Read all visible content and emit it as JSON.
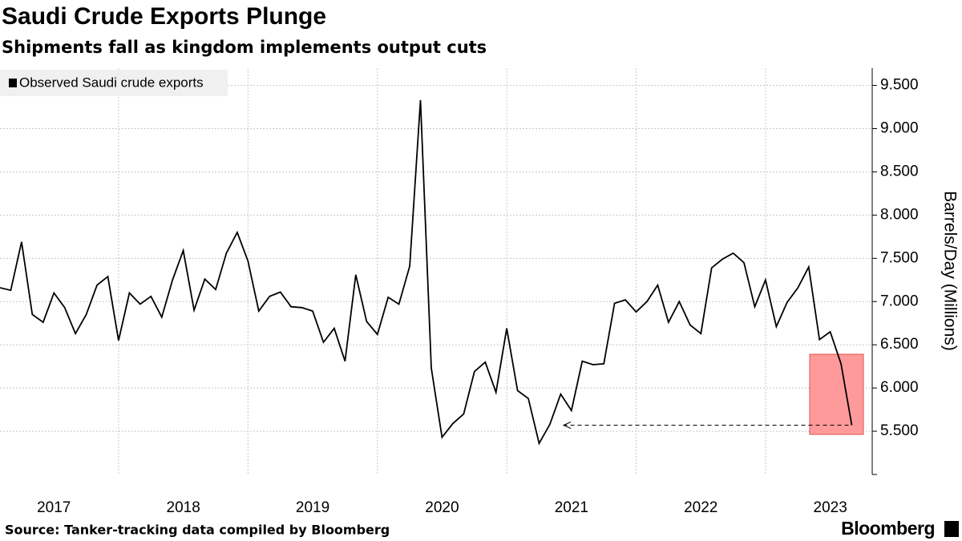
{
  "chart_data": {
    "type": "line",
    "title": "Saudi Crude Exports Plunge",
    "subtitle": "Shipments fall as kingdom implements output cuts",
    "source": "Source: Tanker-tracking data compiled by Bloomberg",
    "brand": "Bloomberg",
    "y_axis_label": "Barrels/Day (Millions)",
    "legend_position": "upper left",
    "grid": true,
    "categories": [
      null,
      null,
      null,
      null,
      null,
      "2017",
      null,
      null,
      null,
      null,
      null,
      null,
      null,
      null,
      null,
      null,
      null,
      "2018",
      null,
      null,
      null,
      null,
      null,
      null,
      null,
      null,
      null,
      null,
      null,
      "2019",
      null,
      null,
      null,
      null,
      null,
      null,
      null,
      null,
      null,
      null,
      null,
      "2020",
      null,
      null,
      null,
      null,
      null,
      null,
      null,
      null,
      null,
      null,
      null,
      "2021",
      null,
      null,
      null,
      null,
      null,
      null,
      null,
      null,
      null,
      null,
      null,
      "2022",
      null,
      null,
      null,
      null,
      null,
      null,
      null,
      null,
      null,
      null,
      null,
      "2023",
      null,
      null
    ],
    "series": [
      {
        "name": "Observed Saudi crude exports",
        "color": "#000000",
        "values": [
          7.16,
          7.13,
          7.69,
          6.85,
          6.76,
          7.1,
          6.93,
          6.63,
          6.85,
          7.19,
          7.29,
          6.55,
          7.1,
          6.97,
          7.06,
          6.82,
          7.25,
          7.59,
          6.9,
          7.26,
          7.14,
          7.56,
          7.8,
          7.47,
          6.89,
          7.06,
          7.11,
          6.94,
          6.93,
          6.89,
          6.53,
          6.69,
          6.31,
          7.31,
          6.77,
          6.62,
          7.05,
          6.97,
          7.41,
          9.33,
          6.23,
          5.43,
          5.59,
          5.7,
          6.19,
          6.3,
          5.95,
          6.69,
          5.97,
          5.88,
          5.36,
          5.58,
          5.93,
          5.74,
          6.31,
          6.27,
          6.28,
          6.98,
          7.02,
          6.88,
          7.0,
          7.19,
          6.76,
          7.0,
          6.73,
          6.63,
          7.39,
          7.49,
          7.56,
          7.45,
          6.94,
          7.25,
          6.71,
          6.99,
          7.16,
          7.4,
          6.56,
          6.65,
          6.28,
          5.57
        ]
      }
    ],
    "ylim": [
      5.0,
      9.7
    ],
    "yticks": [
      {
        "value": 5.5,
        "label": "5.500"
      },
      {
        "value": 6.0,
        "label": "6.000"
      },
      {
        "value": 6.5,
        "label": "6.500"
      },
      {
        "value": 7.0,
        "label": "7.000"
      },
      {
        "value": 7.5,
        "label": "7.500"
      },
      {
        "value": 8.0,
        "label": "8.000"
      },
      {
        "value": 8.5,
        "label": "8.500"
      },
      {
        "value": 9.0,
        "label": "9.000"
      },
      {
        "value": 9.5,
        "label": "9.500"
      }
    ]
  }
}
